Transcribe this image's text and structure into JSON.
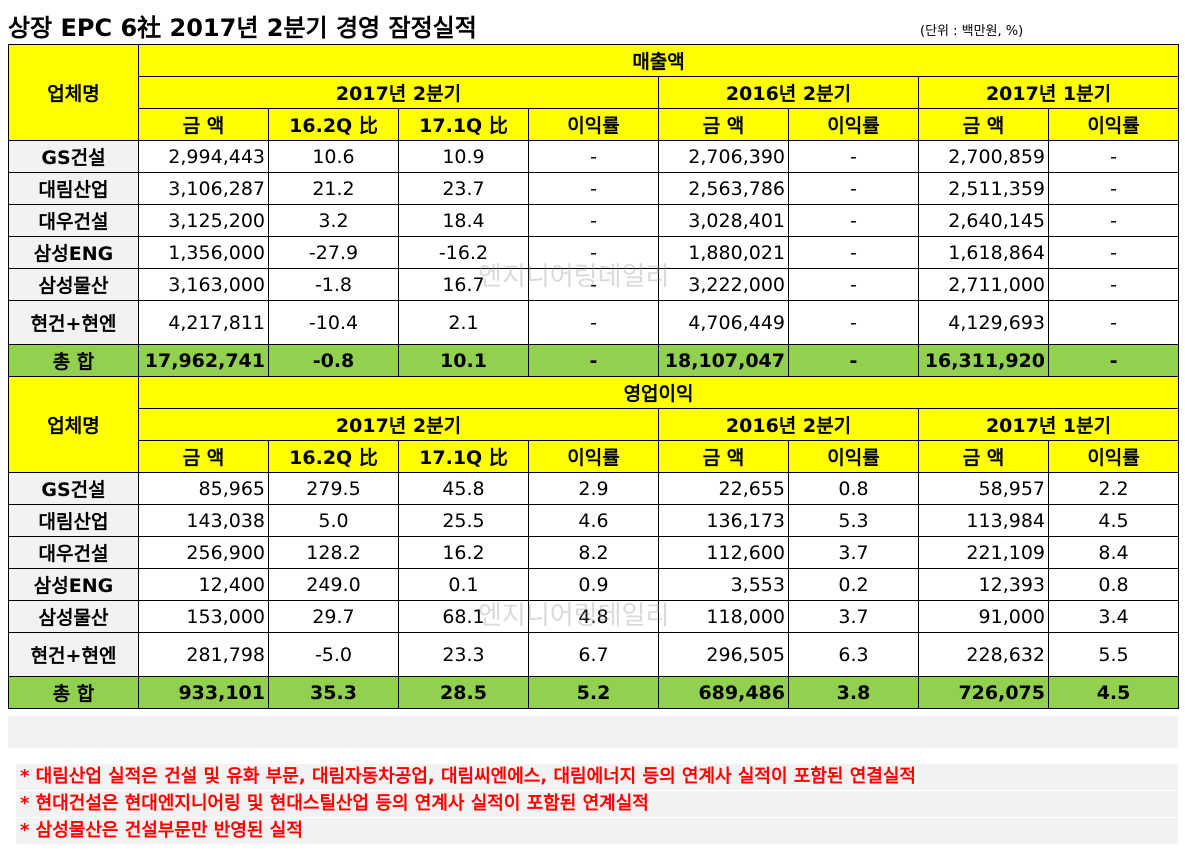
{
  "title": "상장 EPC 6社 2017년 2분기 경영 잠정실적",
  "unit": "(단위 : 백만원, %)",
  "watermark": "엔지니어링데일리",
  "company_header": "업체명",
  "periods": {
    "q2_2017": "2017년 2분기",
    "q2_2016": "2016년 2분기",
    "q1_2017": "2017년 1분기"
  },
  "cols": {
    "amount": "금 액",
    "vs_16q2": "16.2Q 比",
    "vs_17q1": "17.1Q 比",
    "margin": "이익률"
  },
  "sections": [
    {
      "title": "매출액",
      "rows": [
        {
          "name": "GS건설",
          "values": [
            "2,994,443",
            "10.6",
            "10.9",
            "-",
            "2,706,390",
            "-",
            "2,700,859",
            "-"
          ]
        },
        {
          "name": "대림산업",
          "values": [
            "3,106,287",
            "21.2",
            "23.7",
            "-",
            "2,563,786",
            "-",
            "2,511,359",
            "-"
          ]
        },
        {
          "name": "대우건설",
          "values": [
            "3,125,200",
            "3.2",
            "18.4",
            "-",
            "3,028,401",
            "-",
            "2,640,145",
            "-"
          ]
        },
        {
          "name": "삼성ENG",
          "values": [
            "1,356,000",
            "-27.9",
            "-16.2",
            "-",
            "1,880,021",
            "-",
            "1,618,864",
            "-"
          ]
        },
        {
          "name": "삼성물산",
          "values": [
            "3,163,000",
            "-1.8",
            "16.7",
            "-",
            "3,222,000",
            "-",
            "2,711,000",
            "-"
          ]
        },
        {
          "name": "현건+현엔",
          "values": [
            "4,217,811",
            "-10.4",
            "2.1",
            "-",
            "4,706,449",
            "-",
            "4,129,693",
            "-"
          ]
        }
      ],
      "total": {
        "name": "총 합",
        "values": [
          "17,962,741",
          "-0.8",
          "10.1",
          "-",
          "18,107,047",
          "-",
          "16,311,920",
          "-"
        ]
      }
    },
    {
      "title": "영업이익",
      "rows": [
        {
          "name": "GS건설",
          "values": [
            "85,965",
            "279.5",
            "45.8",
            "2.9",
            "22,655",
            "0.8",
            "58,957",
            "2.2"
          ]
        },
        {
          "name": "대림산업",
          "values": [
            "143,038",
            "5.0",
            "25.5",
            "4.6",
            "136,173",
            "5.3",
            "113,984",
            "4.5"
          ]
        },
        {
          "name": "대우건설",
          "values": [
            "256,900",
            "128.2",
            "16.2",
            "8.2",
            "112,600",
            "3.7",
            "221,109",
            "8.4"
          ]
        },
        {
          "name": "삼성ENG",
          "values": [
            "12,400",
            "249.0",
            "0.1",
            "0.9",
            "3,553",
            "0.2",
            "12,393",
            "0.8"
          ]
        },
        {
          "name": "삼성물산",
          "values": [
            "153,000",
            "29.7",
            "68.1",
            "4.8",
            "118,000",
            "3.7",
            "91,000",
            "3.4"
          ]
        },
        {
          "name": "현건+현엔",
          "values": [
            "281,798",
            "-5.0",
            "23.3",
            "6.7",
            "296,505",
            "6.3",
            "228,632",
            "5.5"
          ]
        }
      ],
      "total": {
        "name": "총 합",
        "values": [
          "933,101",
          "35.3",
          "28.5",
          "5.2",
          "689,486",
          "3.8",
          "726,075",
          "4.5"
        ]
      }
    }
  ],
  "notes": [
    "* 대림산업 실적은 건설 및 유화 부문, 대림자동차공업, 대림씨엔에스, 대림에너지 등의 연계사 실적이 포함된 연결실적",
    "* 현대건설은 현대엔지니어링 및 현대스틸산업 등의 연계사 실적이 포함된 연계실적",
    "* 삼성물산은 건설부문만 반영된 실적"
  ],
  "colors": {
    "header_yellow": "#ffff00",
    "total_green": "#92d050",
    "note_red": "#ff0000"
  }
}
